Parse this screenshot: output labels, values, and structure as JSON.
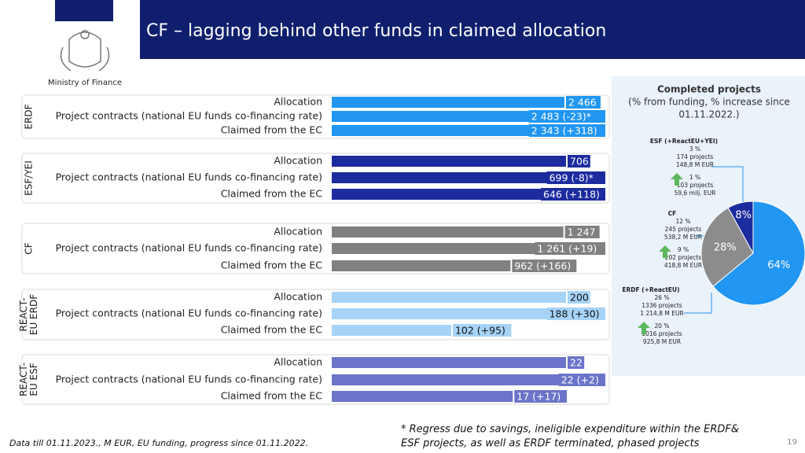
{
  "header": {
    "title": "CF – lagging behind other funds in claimed allocation",
    "logo_text": "Ministry of Finance"
  },
  "chart_data": [
    {
      "type": "bar",
      "ylabel": [
        "ERDF"
      ],
      "categories": [
        "Allocation",
        "Project contracts (national EU funds co-financing rate)",
        "Claimed from the EC"
      ],
      "values": [
        2466,
        2483,
        2343
      ],
      "value_labels": [
        "2 466",
        "2 483 (-23)*",
        "2 343 (+318)"
      ],
      "color": "#2196f3"
    },
    {
      "type": "bar",
      "ylabel": [
        "ESF/YEI"
      ],
      "categories": [
        "Allocation",
        "Project contracts (national EU funds co-financing rate)",
        "Claimed from the EC"
      ],
      "values": [
        706,
        699,
        646
      ],
      "value_labels": [
        "706",
        "699 (-8)*",
        "646 (+118)"
      ],
      "color": "#1c2b9e"
    },
    {
      "type": "bar",
      "ylabel": [
        "CF"
      ],
      "categories": [
        "Allocation",
        "Project contracts (national EU funds co-financing rate)",
        "Claimed from the EC"
      ],
      "values": [
        1247,
        1261,
        962
      ],
      "value_labels": [
        "1 247",
        "1 261 (+19)",
        "962 (+166)"
      ],
      "color": "#808080"
    },
    {
      "type": "bar",
      "ylabel": [
        "REACT-",
        "EU ERDF"
      ],
      "categories": [
        "Allocation",
        "Project contracts (national EU funds co-financing rate)",
        "Claimed from the EC"
      ],
      "values": [
        200,
        188,
        102
      ],
      "value_labels": [
        "200",
        "188 (+30)",
        "102 (+95)"
      ],
      "color": "#a6d3f7"
    },
    {
      "type": "bar",
      "ylabel": [
        "REACT-",
        "EU ESF"
      ],
      "categories": [
        "Allocation",
        "Project contracts (national EU funds co-financing rate)",
        "Claimed from the EC"
      ],
      "values": [
        22,
        22,
        17
      ],
      "value_labels": [
        "22",
        "22 (+2)",
        "17 (+17)"
      ],
      "color": "#6c74c9"
    },
    {
      "type": "pie",
      "title": "Completed projects",
      "subtitle": [
        "(% from funding, % increase since",
        "01.11.2022.)"
      ],
      "categories": [
        "ERDF (+ReactEU)",
        "CF",
        "ESF (+ReactEU+YEI)"
      ],
      "values": [
        64,
        28,
        8
      ],
      "value_labels": [
        "64%",
        "28%",
        "8%"
      ],
      "colors": [
        "#2196f3",
        "#8c8c8c",
        "#1c2b9e"
      ],
      "annotations": [
        [
          "26 %",
          "1336 projects",
          "1 214,8 M EUR",
          "20 %",
          "1016 projects",
          "925,8 M EUR"
        ],
        [
          "12 %",
          "245 projects",
          "538,2 M EUR",
          "9 %",
          "202 projects",
          "418,8 M EUR"
        ],
        [
          "3 %",
          "174 projects",
          "148,8 M EUR",
          "1 %",
          "103 projects",
          "59,6 milj. EUR"
        ]
      ]
    }
  ],
  "footer": {
    "source": "Data till 01.11.2023., M EUR, EU funding, progress since 01.11.2022.",
    "note": [
      "* Regress due to savings, ineligible expenditure within the ERDF&",
      "ESF projects, as well as ERDF terminated, phased projects"
    ],
    "page": "19"
  }
}
